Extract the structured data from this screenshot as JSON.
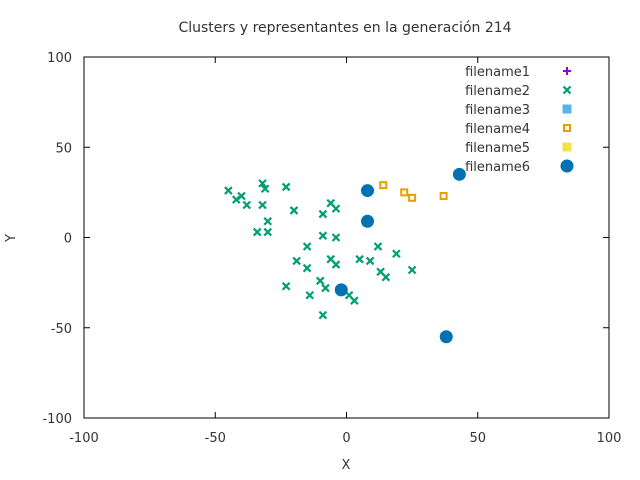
{
  "chart_data": {
    "type": "scatter",
    "title": "Clusters y representantes en la generación 214",
    "xlabel": "X",
    "ylabel": "Y",
    "xlim": [
      -100,
      100
    ],
    "ylim": [
      -100,
      100
    ],
    "xticks": [
      "-100",
      "-50",
      "0",
      "50",
      "100"
    ],
    "yticks": [
      "-100",
      "-50",
      "0",
      "50",
      "100"
    ],
    "grid": false,
    "legend_position": "top-right",
    "series": [
      {
        "name": "filename1",
        "marker": "plus",
        "color": "#9400d3",
        "points": []
      },
      {
        "name": "filename2",
        "marker": "cross",
        "color": "#009e73",
        "points": [
          [
            -45,
            26
          ],
          [
            -42,
            21
          ],
          [
            -40,
            23
          ],
          [
            -38,
            18
          ],
          [
            -34,
            3
          ],
          [
            -32,
            30
          ],
          [
            -32,
            18
          ],
          [
            -31,
            27
          ],
          [
            -30,
            9
          ],
          [
            -30,
            3
          ],
          [
            -23,
            28
          ],
          [
            -20,
            15
          ],
          [
            -23,
            -27
          ],
          [
            -19,
            -13
          ],
          [
            -15,
            -5
          ],
          [
            -15,
            -17
          ],
          [
            -14,
            -32
          ],
          [
            -10,
            -24
          ],
          [
            -9,
            1
          ],
          [
            -9,
            13
          ],
          [
            -9,
            -43
          ],
          [
            -8,
            -28
          ],
          [
            -6,
            19
          ],
          [
            -6,
            -12
          ],
          [
            -4,
            16
          ],
          [
            -4,
            0
          ],
          [
            -4,
            -15
          ],
          [
            1,
            -32
          ],
          [
            3,
            -35
          ],
          [
            5,
            -12
          ],
          [
            9,
            -13
          ],
          [
            12,
            -5
          ],
          [
            13,
            -19
          ],
          [
            15,
            -22
          ],
          [
            19,
            -9
          ],
          [
            25,
            -18
          ]
        ]
      },
      {
        "name": "filename3",
        "marker": "square",
        "color": "#56b4e9",
        "points": []
      },
      {
        "name": "filename4",
        "marker": "open-square",
        "color": "#e69f00",
        "points": [
          [
            14,
            29
          ],
          [
            22,
            25
          ],
          [
            25,
            22
          ],
          [
            37,
            23
          ]
        ]
      },
      {
        "name": "filename5",
        "marker": "filled-square",
        "color": "#f0e442",
        "points": []
      },
      {
        "name": "filename6",
        "marker": "circle",
        "color": "#0072b2",
        "points": [
          [
            8,
            26
          ],
          [
            8,
            9
          ],
          [
            -2,
            -29
          ],
          [
            38,
            -55
          ],
          [
            43,
            35
          ]
        ]
      }
    ]
  }
}
